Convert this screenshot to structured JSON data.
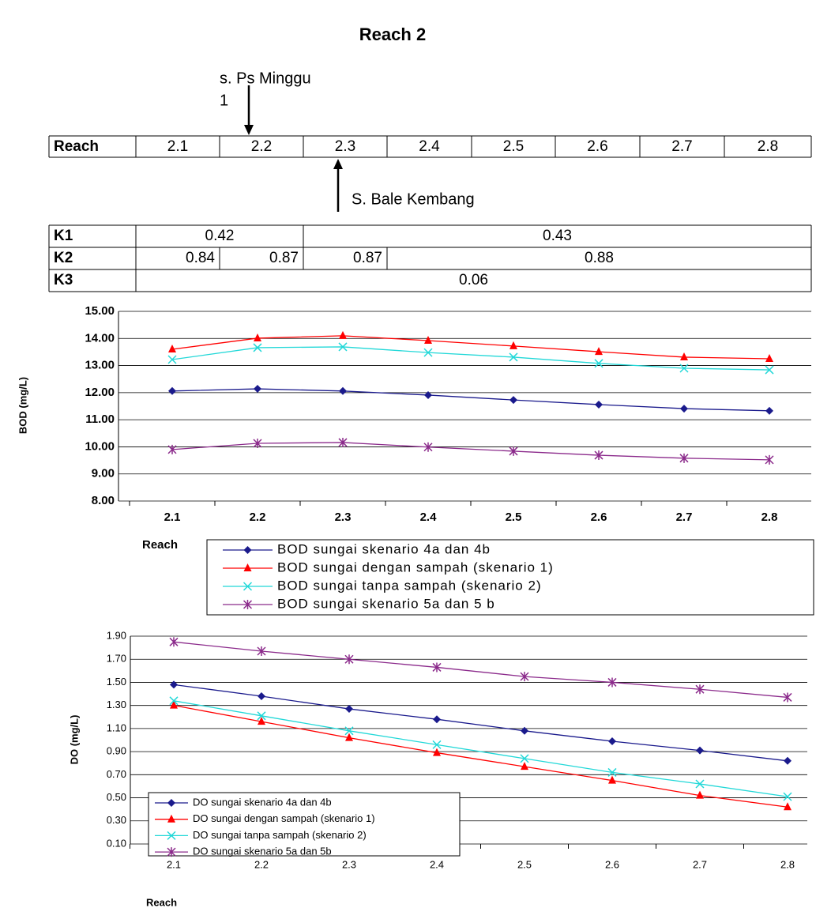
{
  "title": "Reach  2",
  "annotations": {
    "upstream": [
      "s. Ps Minggu",
      "1"
    ],
    "downstream": "S. Bale Kembang"
  },
  "reach_table": {
    "header": "Reach",
    "cells": [
      "2.1",
      "2.2",
      "2.3",
      "2.4",
      "2.5",
      "2.6",
      "2.7",
      "2.8"
    ]
  },
  "k_table": {
    "rows": [
      {
        "label": "K1",
        "values": [
          0.42,
          0.43
        ]
      },
      {
        "label": "K2",
        "values": [
          0.84,
          0.87,
          0.87,
          0.88
        ]
      },
      {
        "label": "K3",
        "values": [
          0.06
        ]
      }
    ]
  },
  "chart_data": [
    {
      "type": "line",
      "x_label": "Reach",
      "y_label": "BOD (mg/L)",
      "categories": [
        "2.1",
        "2.2",
        "2.3",
        "2.4",
        "2.5",
        "2.6",
        "2.7",
        "2.8"
      ],
      "ylim": [
        8,
        15
      ],
      "yticks": [
        {
          "value": 8,
          "label": "8.00"
        },
        {
          "value": 9,
          "label": "9.00"
        },
        {
          "value": 10,
          "label": "10.00"
        },
        {
          "value": 11,
          "label": "11.00"
        },
        {
          "value": 12,
          "label": "12.00"
        },
        {
          "value": 13,
          "label": "13.00"
        },
        {
          "value": 14,
          "label": "14.00"
        },
        {
          "value": 15,
          "label": "15.00"
        }
      ],
      "grid": true,
      "legend": "bottom",
      "series": [
        {
          "name": "BOD sungai skenario 4a dan 4b",
          "color": "#1a1a8c",
          "marker": "diamond",
          "values": [
            12.06,
            12.14,
            12.06,
            11.91,
            11.73,
            11.56,
            11.41,
            11.33
          ]
        },
        {
          "name": "BOD sungai dengan sampah (skenario 1)",
          "color": "#ff0000",
          "marker": "triangle",
          "values": [
            13.6,
            14.01,
            14.1,
            13.92,
            13.72,
            13.51,
            13.31,
            13.25
          ]
        },
        {
          "name": "BOD sungai tanpa sampah (skenario 2)",
          "color": "#22d8d8",
          "marker": "x",
          "values": [
            13.22,
            13.66,
            13.69,
            13.48,
            13.31,
            13.08,
            12.9,
            12.84
          ]
        },
        {
          "name": "BOD sungai skenario 5a dan 5 b",
          "color": "#8b2a8b",
          "marker": "star",
          "values": [
            9.9,
            10.13,
            10.16,
            9.99,
            9.84,
            9.69,
            9.58,
            9.52
          ]
        }
      ]
    },
    {
      "type": "line",
      "x_label": "Reach",
      "y_label": "DO (mg/L)",
      "categories": [
        "2.1",
        "2.2",
        "2.3",
        "2.4",
        "2.5",
        "2.6",
        "2.7",
        "2.8"
      ],
      "ylim": [
        0.1,
        1.9
      ],
      "yticks": [
        {
          "value": 0.1,
          "label": "0.10"
        },
        {
          "value": 0.3,
          "label": "0.30"
        },
        {
          "value": 0.5,
          "label": "0.50"
        },
        {
          "value": 0.7,
          "label": "0.70"
        },
        {
          "value": 0.9,
          "label": "0.90"
        },
        {
          "value": 1.1,
          "label": "1.10"
        },
        {
          "value": 1.3,
          "label": "1.30"
        },
        {
          "value": 1.5,
          "label": "1.50"
        },
        {
          "value": 1.7,
          "label": "1.70"
        },
        {
          "value": 1.9,
          "label": "1.90"
        }
      ],
      "grid": true,
      "legend": "lower left",
      "series": [
        {
          "name": "DO sungai skenario 4a dan 4b",
          "color": "#1a1a8c",
          "marker": "diamond",
          "values": [
            1.48,
            1.38,
            1.27,
            1.18,
            1.08,
            0.99,
            0.91,
            0.82
          ]
        },
        {
          "name": "DO sungai dengan sampah (skenario 1)",
          "color": "#ff0000",
          "marker": "triangle",
          "values": [
            1.3,
            1.16,
            1.02,
            0.89,
            0.77,
            0.65,
            0.52,
            0.42
          ]
        },
        {
          "name": "DO sungai tanpa sampah (skenario 2)",
          "color": "#22d8d8",
          "marker": "x",
          "values": [
            1.34,
            1.21,
            1.08,
            0.96,
            0.84,
            0.72,
            0.62,
            0.51
          ]
        },
        {
          "name": "DO sungai skenario 5a dan 5b",
          "color": "#8b2a8b",
          "marker": "star",
          "values": [
            1.85,
            1.77,
            1.7,
            1.63,
            1.55,
            1.5,
            1.44,
            1.37
          ]
        }
      ]
    }
  ]
}
